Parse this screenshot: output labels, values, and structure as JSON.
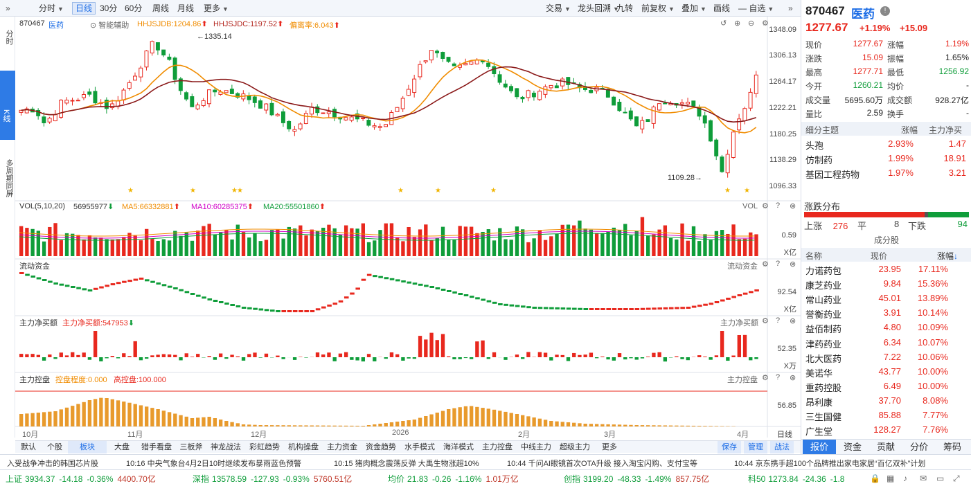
{
  "toolbar": {
    "collapse": "»",
    "periods": [
      "分时",
      "日线",
      "30分",
      "60分",
      "周线",
      "月线",
      "更多"
    ],
    "active_period": "日线",
    "tools": [
      "交易",
      "龙头回溯",
      "九转",
      "前复权",
      "叠加",
      "画线",
      "自选"
    ],
    "expand": "»"
  },
  "sidenav": {
    "top": "分时",
    "active": "K线",
    "bottom": "多周期同屏"
  },
  "price_header": {
    "code": "870467",
    "name": "医药",
    "assist": "智能辅助",
    "hhjsjdb": "HHJSJDB:1204.86",
    "hhjsjdc": "HHJSJDC:1197.52",
    "deviation": "偏离率:6.043"
  },
  "price_axis": [
    "1348.09",
    "1306.13",
    "1264.17",
    "1222.21",
    "1180.25",
    "1138.29",
    "1096.33"
  ],
  "high_label": "1335.14",
  "low_label": "1109.28",
  "vol_header": {
    "title": "VOL(5,10,20)",
    "value": "56955977",
    "ma5": "MA5:66332881",
    "ma10": "MA10:60285375",
    "ma20": "MA20:55501860",
    "right": "VOL"
  },
  "vol_axis": {
    "value": "0.59",
    "unit": "X亿"
  },
  "flow_header": {
    "title": "流动资金",
    "right": "流动资金"
  },
  "flow_axis": {
    "value": "92.54",
    "unit": "X亿"
  },
  "main_header": {
    "title": "主力净买额",
    "value": "主力净买额:547953",
    "right": "主力净买额"
  },
  "main_axis": {
    "value": "52.35",
    "unit": "X万"
  },
  "ctrl_header": {
    "title": "主力控盘",
    "degree": "控盘程度:0.000",
    "high": "高控盘:100.000",
    "right": "主力控盘"
  },
  "ctrl_axis": {
    "value": "56.85"
  },
  "date_axis": [
    "10月",
    "11月",
    "12月",
    "2026",
    "2月",
    "3月",
    "4月"
  ],
  "date_axis_right": "日线",
  "bottom_tabs": [
    "默认",
    "个股",
    "板块",
    "大盘",
    "猎手看盘",
    "三板斧",
    "神龙战法",
    "彩虹趋势",
    "机构操盘",
    "主力资金",
    "资金趋势",
    "水手模式",
    "海洋模式",
    "主力控盘",
    "中线主力",
    "超级主力",
    "更多"
  ],
  "bottom_active": "板块",
  "bottom_right_tabs": [
    "保存",
    "管理",
    "战法"
  ],
  "stock": {
    "code": "870467",
    "name": "医药",
    "price": "1277.67",
    "change_pct": "+1.19%",
    "change": "+15.09"
  },
  "quote": [
    {
      "l1": "现价",
      "v1": "1277.67",
      "c1": "red",
      "l2": "涨幅",
      "v2": "1.19%",
      "c2": "red"
    },
    {
      "l1": "涨跌",
      "v1": "15.09",
      "c1": "red",
      "l2": "振幅",
      "v2": "1.65%",
      "c2": "black"
    },
    {
      "l1": "最高",
      "v1": "1277.71",
      "c1": "red",
      "l2": "最低",
      "v2": "1256.92",
      "c2": "green"
    },
    {
      "l1": "今开",
      "v1": "1260.21",
      "c1": "green",
      "l2": "均价",
      "v2": "-",
      "c2": "black"
    },
    {
      "l1": "成交量",
      "v1": "5695.60万",
      "c1": "black",
      "l2": "成交额",
      "v2": "928.27亿",
      "c2": "black"
    },
    {
      "l1": "量比",
      "v1": "2.59",
      "c1": "black",
      "l2": "换手",
      "v2": "-",
      "c2": "black"
    }
  ],
  "themes_header": {
    "name": "细分主题",
    "pct": "涨幅",
    "flow": "主力净买"
  },
  "themes": [
    {
      "name": "头孢",
      "pct": "2.93%",
      "flow": "1.47"
    },
    {
      "name": "仿制药",
      "pct": "1.99%",
      "flow": "18.91"
    },
    {
      "name": "基因工程药物",
      "pct": "1.97%",
      "flow": "3.21"
    }
  ],
  "distribution": {
    "title": "涨跌分布",
    "up_label": "上涨",
    "up": "276",
    "flat_label": "平",
    "flat": "8",
    "down_label": "下跌",
    "down": "94",
    "up_ratio": 0.73,
    "flat_ratio": 0.021
  },
  "components_title": "成分股",
  "components_header": {
    "name": "名称",
    "price": "现价",
    "pct": "涨幅"
  },
  "components": [
    {
      "name": "力诺药包",
      "price": "23.95",
      "pct": "17.11%"
    },
    {
      "name": "康芝药业",
      "price": "9.84",
      "pct": "15.36%"
    },
    {
      "name": "常山药业",
      "price": "45.01",
      "pct": "13.89%"
    },
    {
      "name": "誉衡药业",
      "price": "3.91",
      "pct": "10.14%"
    },
    {
      "name": "益佰制药",
      "price": "4.80",
      "pct": "10.09%"
    },
    {
      "name": "津药药业",
      "price": "6.34",
      "pct": "10.07%"
    },
    {
      "name": "北大医药",
      "price": "7.22",
      "pct": "10.06%"
    },
    {
      "name": "美诺华",
      "price": "43.77",
      "pct": "10.00%"
    },
    {
      "name": "重药控股",
      "price": "6.49",
      "pct": "10.00%"
    },
    {
      "name": "昂利康",
      "price": "37.70",
      "pct": "8.08%"
    },
    {
      "name": "三生国健",
      "price": "85.88",
      "pct": "7.77%"
    },
    {
      "name": "广生堂",
      "price": "128.27",
      "pct": "7.76%"
    }
  ],
  "right_tabs": [
    "报价",
    "资金",
    "贡献",
    "分价",
    "筹码"
  ],
  "right_active": "报价",
  "news": [
    "入受战争冲击的韩国芯片股",
    "10:16 中央气象台4月2日10时继续发布暴雨蓝色预警",
    "10:15 猪肉概念震荡反弹 大禹生物涨超10%",
    "10:44 千问AI眼镜首次OTA升级  接入淘宝闪购、支付宝等",
    "10:44 京东携手超100个品牌推出家电家居“百亿双补”计划"
  ],
  "indices": [
    {
      "name": "上证",
      "value": "3934.37",
      "chg": "-14.18",
      "pct": "-0.36%",
      "amt": "4400.70亿"
    },
    {
      "name": "深指",
      "value": "13578.59",
      "chg": "-127.93",
      "pct": "-0.93%",
      "amt": "5760.51亿"
    },
    {
      "name": "均价",
      "value": "21.83",
      "chg": "-0.26",
      "pct": "-1.16%",
      "amt": "1.01万亿"
    },
    {
      "name": "创指",
      "value": "3199.20",
      "chg": "-48.33",
      "pct": "-1.49%",
      "amt": "857.75亿"
    },
    {
      "name": "科50",
      "value": "1273.84",
      "chg": "-24.36",
      "pct": "-1.8",
      "amt": ""
    }
  ],
  "colors": {
    "up": "#e8281e",
    "down": "#0f9d3a",
    "ma_short": "#f08c00",
    "ma_long": "#8b1a1a",
    "accent": "#2e7be6",
    "ctrl_bar": "#e89a2c"
  },
  "chart_data": {
    "type": "candlestick",
    "price_range": [
      1096.33,
      1348.09
    ],
    "high": 1335.14,
    "low": 1109.28,
    "last_close": 1277.67,
    "date_ticks": [
      "10月",
      "11月",
      "12月",
      "2026",
      "2月",
      "3月",
      "4月"
    ]
  }
}
